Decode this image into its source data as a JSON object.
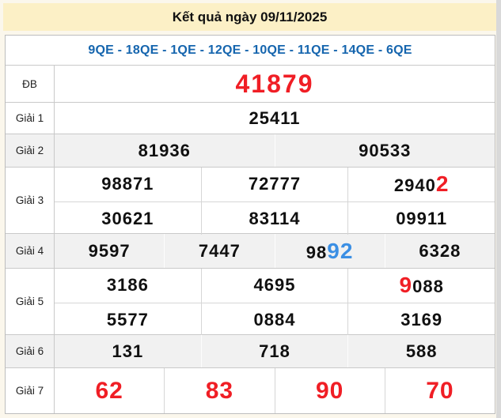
{
  "title": "Kết quả ngày 09/11/2025",
  "station_codes": "9QE - 18QE - 1QE - 12QE - 10QE - 11QE - 14QE - 6QE",
  "colors": {
    "band_bg": "#FCF0C6",
    "red": "#F01E25",
    "blue_digit": "#3B8FE4",
    "subheader_blue": "#1565AE",
    "alt_row_bg": "#F1F1F1"
  },
  "prizes": {
    "db": {
      "label": "ĐB",
      "value": "41879"
    },
    "g1": {
      "label": "Giải 1",
      "value": "25411"
    },
    "g2": {
      "label": "Giải 2",
      "values": [
        "81936",
        "90533"
      ]
    },
    "g3": {
      "label": "Giải 3",
      "row1": [
        "98871",
        "72777"
      ],
      "row1_special": {
        "prefix": "2940",
        "highlight": "2"
      },
      "row2": [
        "30621",
        "83114",
        "09911"
      ]
    },
    "g4": {
      "label": "Giải 4",
      "values": [
        "9597",
        "7447"
      ],
      "special": {
        "prefix": "98",
        "highlight": "92"
      },
      "last": "6328"
    },
    "g5": {
      "label": "Giải 5",
      "row1": [
        "3186",
        "4695"
      ],
      "row1_special": {
        "highlight": "9",
        "suffix": "088"
      },
      "row2": [
        "5577",
        "0884",
        "3169"
      ]
    },
    "g6": {
      "label": "Giải 6",
      "values": [
        "131",
        "718",
        "588"
      ]
    },
    "g7": {
      "label": "Giải 7",
      "values": [
        "62",
        "83",
        "90",
        "70"
      ]
    }
  }
}
